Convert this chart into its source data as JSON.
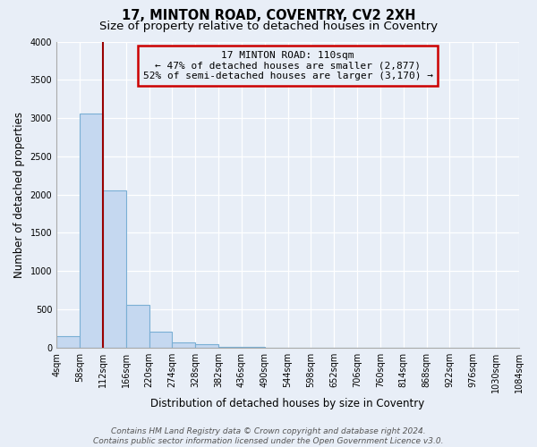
{
  "title": "17, MINTON ROAD, COVENTRY, CV2 2XH",
  "subtitle": "Size of property relative to detached houses in Coventry",
  "xlabel": "Distribution of detached houses by size in Coventry",
  "ylabel": "Number of detached properties",
  "bar_edges": [
    4,
    58,
    112,
    166,
    220,
    274,
    328,
    382,
    436,
    490,
    544,
    598,
    652,
    706,
    760,
    814,
    868,
    922,
    976,
    1030,
    1084
  ],
  "bar_heights": [
    150,
    3060,
    2060,
    560,
    210,
    70,
    40,
    15,
    5,
    0,
    0,
    0,
    0,
    0,
    0,
    0,
    0,
    0,
    0,
    0
  ],
  "bar_color": "#c5d8f0",
  "bar_edgecolor": "#7aafd4",
  "bar_linewidth": 0.8,
  "vline_x": 112,
  "vline_color": "#990000",
  "vline_linewidth": 1.5,
  "annotation_title": "17 MINTON ROAD: 110sqm",
  "annotation_line1": "← 47% of detached houses are smaller (2,877)",
  "annotation_line2": "52% of semi-detached houses are larger (3,170) →",
  "annotation_box_edgecolor": "#cc0000",
  "ylim": [
    0,
    4000
  ],
  "yticks": [
    0,
    500,
    1000,
    1500,
    2000,
    2500,
    3000,
    3500,
    4000
  ],
  "tick_labels": [
    "4sqm",
    "58sqm",
    "112sqm",
    "166sqm",
    "220sqm",
    "274sqm",
    "328sqm",
    "382sqm",
    "436sqm",
    "490sqm",
    "544sqm",
    "598sqm",
    "652sqm",
    "706sqm",
    "760sqm",
    "814sqm",
    "868sqm",
    "922sqm",
    "976sqm",
    "1030sqm",
    "1084sqm"
  ],
  "footer_line1": "Contains HM Land Registry data © Crown copyright and database right 2024.",
  "footer_line2": "Contains public sector information licensed under the Open Government Licence v3.0.",
  "bg_color": "#e8eef7",
  "grid_color": "#ffffff",
  "title_fontsize": 10.5,
  "subtitle_fontsize": 9.5,
  "axis_label_fontsize": 8.5,
  "tick_fontsize": 7,
  "anno_fontsize": 8,
  "footer_fontsize": 6.5
}
